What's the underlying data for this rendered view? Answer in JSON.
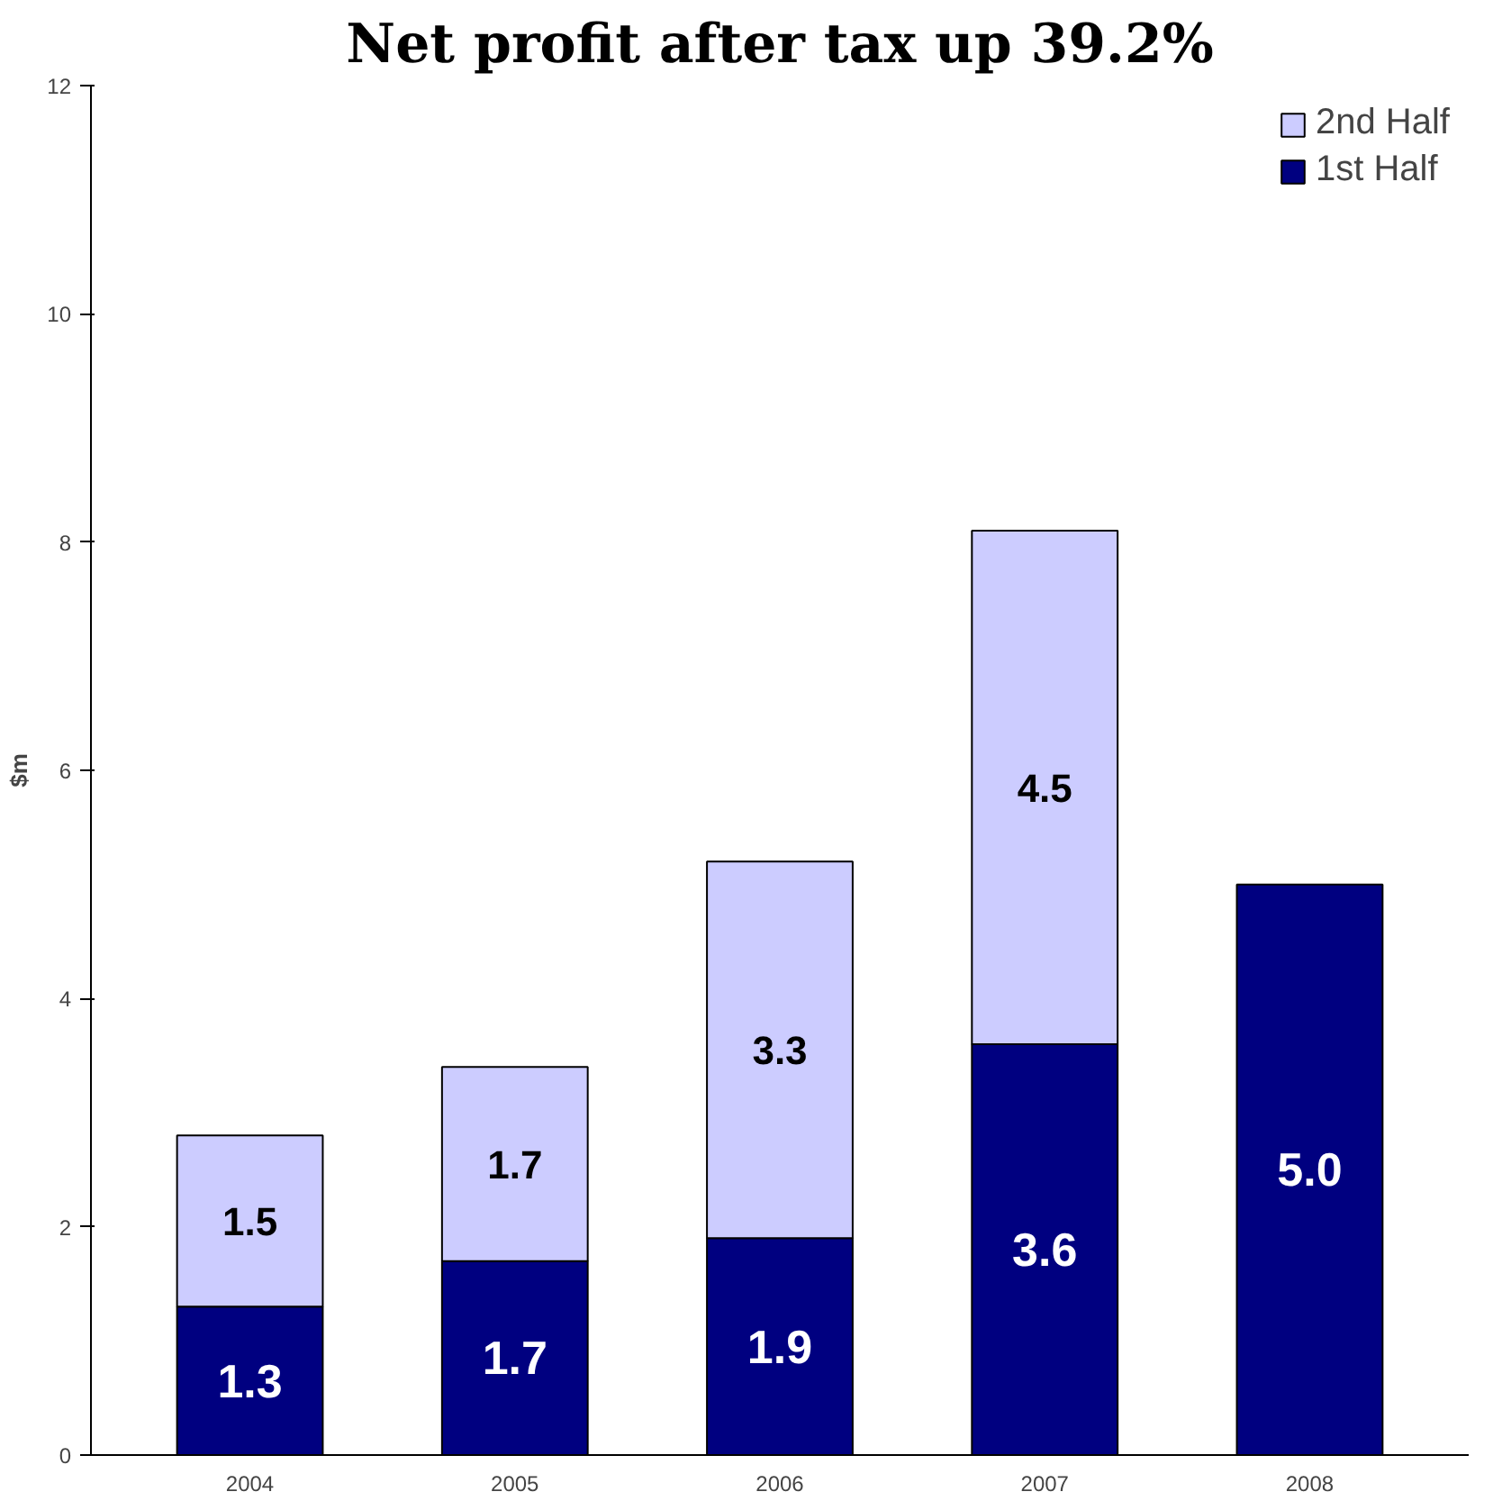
{
  "chart_data": {
    "type": "bar",
    "title": "Net profit after tax up 39.2%",
    "ylabel": "$m",
    "categories": [
      "2004",
      "2005",
      "2006",
      "2007",
      "2008"
    ],
    "stacked": true,
    "series": [
      {
        "name": "1st Half",
        "color": "#000080",
        "values": [
          1.3,
          1.7,
          1.9,
          3.6,
          5.0
        ],
        "value_labels": [
          "1.3",
          "1.7",
          "1.9",
          "3.6",
          "5.0"
        ]
      },
      {
        "name": "2nd Half",
        "color": "#ccccff",
        "values": [
          1.5,
          1.7,
          3.3,
          4.5,
          null
        ],
        "value_labels": [
          "1.5",
          "1.7",
          "3.3",
          "4.5",
          null
        ]
      }
    ],
    "ylim": [
      0,
      12
    ],
    "yticks": [
      0,
      2,
      4,
      6,
      8,
      10,
      12
    ],
    "legend": "top right",
    "grid": false
  }
}
